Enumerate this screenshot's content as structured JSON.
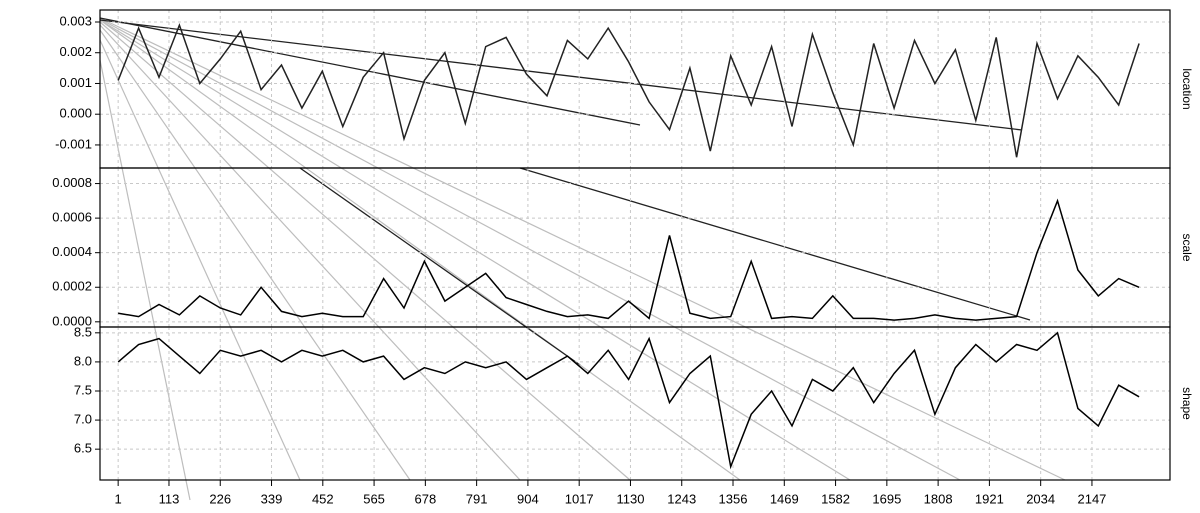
{
  "chart_data": {
    "type": "line",
    "x": [
      1,
      46,
      91,
      136,
      181,
      226,
      271,
      316,
      361,
      406,
      451,
      496,
      541,
      586,
      631,
      676,
      721,
      766,
      811,
      856,
      901,
      946,
      991,
      1036,
      1081,
      1126,
      1171,
      1216,
      1261,
      1306,
      1351,
      1396,
      1441,
      1486,
      1531,
      1576,
      1621,
      1666,
      1711,
      1756,
      1801,
      1846,
      1891,
      1936,
      1981,
      2026,
      2071,
      2116,
      2161,
      2206,
      2251
    ],
    "xlim": [
      -39,
      2319
    ],
    "xticks": [
      1,
      113,
      226,
      339,
      452,
      565,
      678,
      791,
      904,
      1017,
      1130,
      1243,
      1356,
      1469,
      1582,
      1695,
      1808,
      1921,
      2034,
      2147
    ],
    "grid": true,
    "series": [
      {
        "name": "location",
        "color": "#222222",
        "values": [
          0.0011,
          0.0028,
          0.0012,
          0.0029,
          0.001,
          0.0018,
          0.0027,
          0.0008,
          0.0016,
          0.0002,
          0.0014,
          -0.0004,
          0.0012,
          0.002,
          -0.0008,
          0.0011,
          0.002,
          -0.0003,
          0.0022,
          0.0025,
          0.0013,
          0.0006,
          0.0024,
          0.0018,
          0.0028,
          0.0017,
          0.0004,
          -0.0005,
          0.0015,
          -0.0012,
          0.0019,
          0.0003,
          0.0022,
          -0.0004,
          0.0026,
          0.0007,
          -0.001,
          0.0023,
          0.0002,
          0.0024,
          0.001,
          0.0021,
          -0.0002,
          0.0025,
          -0.0014,
          0.0023,
          0.0005,
          0.0019,
          0.0012,
          0.0003,
          0.0023
        ],
        "ylim": [
          -0.00175,
          0.00339
        ],
        "yticks": [
          0.003,
          0.002,
          0.001,
          {
            "value": 0,
            "label": "0.000"
          },
          -0.001
        ]
      },
      {
        "name": "scale",
        "color": "#000000",
        "values": [
          5e-05,
          3e-05,
          0.0001,
          4e-05,
          0.00015,
          8e-05,
          4e-05,
          0.0002,
          6e-05,
          3e-05,
          5e-05,
          3e-05,
          3e-05,
          0.00025,
          8e-05,
          0.00035,
          0.00012,
          0.0002,
          0.00028,
          0.00014,
          0.0001,
          6e-05,
          3e-05,
          4e-05,
          2e-05,
          0.00012,
          2e-05,
          0.0005,
          5e-05,
          2e-05,
          3e-05,
          0.00035,
          2e-05,
          3e-05,
          2e-05,
          0.00015,
          2e-05,
          2e-05,
          1e-05,
          2e-05,
          4e-05,
          2e-05,
          1e-05,
          2e-05,
          3e-05,
          0.0004,
          0.0007,
          0.0003,
          0.00015,
          0.00025,
          0.0002
        ],
        "ylim": [
          -3e-05,
          0.00089
        ],
        "yticks": [
          {
            "value": 0.0008,
            "label": "0.0008"
          },
          {
            "value": 0.0006,
            "label": "0.0006"
          },
          {
            "value": 0.0004,
            "label": "0.0004"
          },
          {
            "value": 0.0002,
            "label": "0.0002"
          },
          {
            "value": 0,
            "label": "0.0000"
          }
        ]
      },
      {
        "name": "shape",
        "color": "#000000",
        "values": [
          8.0,
          8.3,
          8.4,
          8.1,
          7.8,
          8.2,
          8.1,
          8.2,
          8.0,
          8.2,
          8.1,
          8.2,
          8.0,
          8.1,
          7.7,
          7.9,
          7.8,
          8.0,
          7.9,
          8.0,
          7.7,
          7.9,
          8.1,
          7.8,
          8.2,
          7.7,
          8.4,
          7.3,
          7.8,
          8.1,
          6.2,
          7.1,
          7.5,
          6.9,
          7.7,
          7.5,
          7.9,
          7.3,
          7.8,
          8.2,
          7.1,
          7.9,
          8.3,
          8.0,
          8.3,
          8.2,
          8.5,
          7.2,
          6.9,
          7.6,
          7.4
        ],
        "ylim": [
          5.97,
          8.6
        ],
        "yticks": [
          {
            "value": 8.5,
            "label": "8.5"
          },
          {
            "value": 8,
            "label": "8.0"
          },
          7.5,
          {
            "value": 7,
            "label": "7.0"
          },
          6.5
        ]
      }
    ]
  }
}
